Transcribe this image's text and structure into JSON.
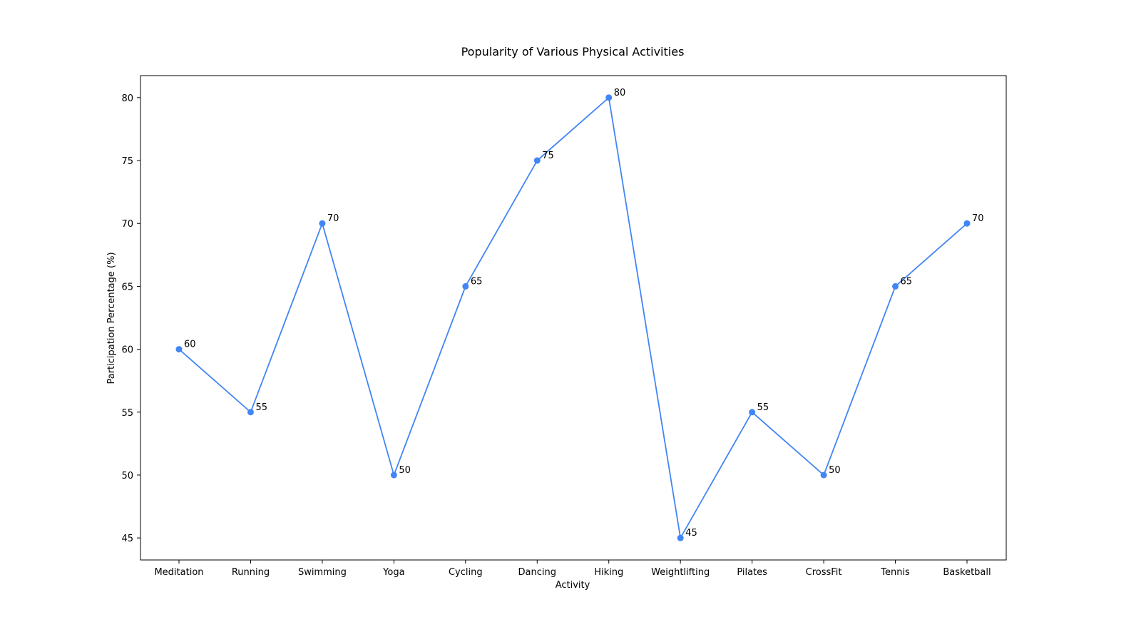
{
  "chart_data": {
    "type": "line",
    "title": "Popularity of Various Physical Activities",
    "xlabel": "Activity",
    "ylabel": "Participation Percentage (%)",
    "categories": [
      "Meditation",
      "Running",
      "Swimming",
      "Yoga",
      "Cycling",
      "Dancing",
      "Hiking",
      "Weightlifting",
      "Pilates",
      "CrossFit",
      "Tennis",
      "Basketball"
    ],
    "series": [
      {
        "values": [
          60,
          55,
          70,
          50,
          65,
          75,
          80,
          45,
          55,
          50,
          65,
          70
        ]
      }
    ],
    "ylim": [
      43.25,
      81.75
    ],
    "yticks": [
      45,
      50,
      55,
      60,
      65,
      70,
      75,
      80
    ],
    "grid": false,
    "line_color": "#4285F4",
    "data_labels": true
  }
}
